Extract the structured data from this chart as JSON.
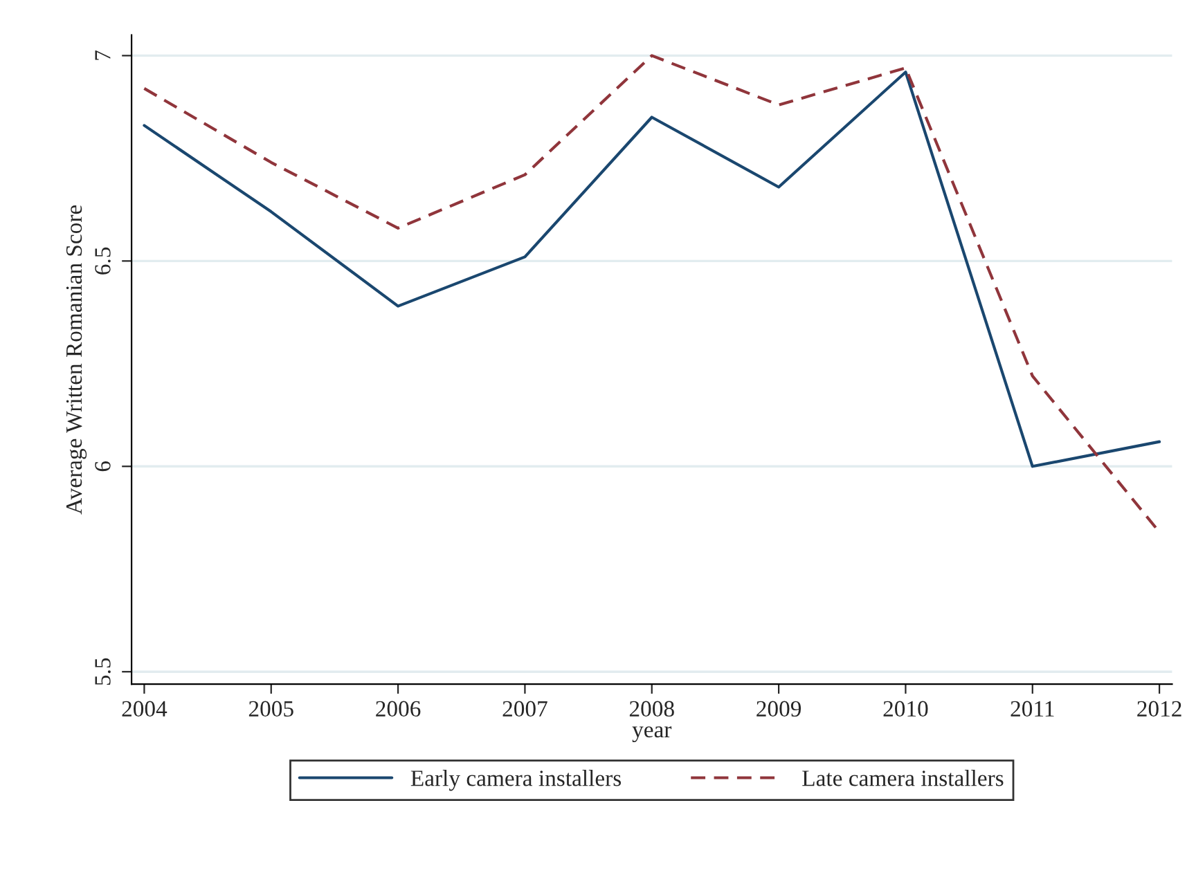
{
  "chart_data": {
    "type": "line",
    "xlabel": "year",
    "ylabel": "Average Written Romanian Score",
    "x": [
      2004,
      2005,
      2006,
      2007,
      2008,
      2009,
      2010,
      2011,
      2012
    ],
    "series": [
      {
        "name": "Early camera installers",
        "color": "#1a476f",
        "line_style": "solid",
        "values": [
          6.83,
          6.62,
          6.39,
          6.51,
          6.85,
          6.68,
          6.96,
          6.0,
          6.06
        ]
      },
      {
        "name": "Late camera installers",
        "color": "#90353b",
        "line_style": "dashed",
        "values": [
          6.92,
          6.74,
          6.58,
          6.71,
          7.0,
          6.88,
          6.97,
          6.22,
          5.84
        ]
      }
    ],
    "xlim": [
      2003.9,
      2012.1
    ],
    "xticks": [
      2004,
      2005,
      2006,
      2007,
      2008,
      2009,
      2010,
      2011,
      2012
    ],
    "ylim": [
      5.47,
      7.05
    ],
    "yticks": [
      5.5,
      6,
      6.5,
      7
    ],
    "grid": "y",
    "legend": "bottom",
    "marker": "none"
  }
}
